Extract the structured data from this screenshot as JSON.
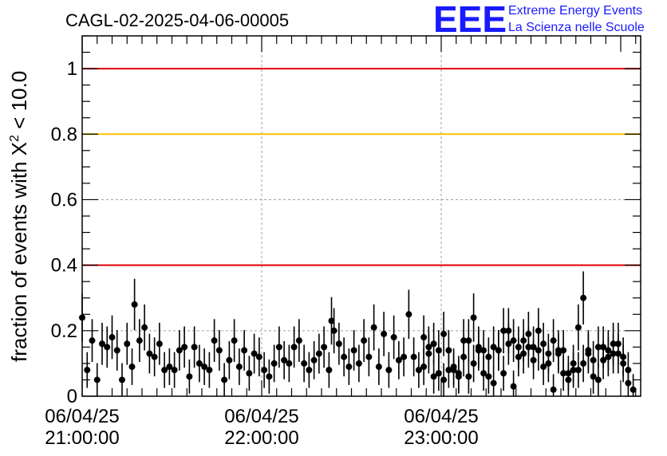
{
  "title": "CAGL-02-2025-04-06-00005",
  "logo": {
    "mark": "EEE",
    "line1": "Extreme Energy Events",
    "line2": "La Scienza nelle Scuole",
    "color": "#1a1aff"
  },
  "chart_data": {
    "type": "scatter",
    "title": "CAGL-02-2025-04-06-00005",
    "ylabel_prefix": "fraction of events with ",
    "ylabel_chi": "X",
    "ylabel_sup": "2",
    "ylabel_suffix": " < 10.0",
    "ylim": [
      0,
      1.1
    ],
    "yticks": [
      "0",
      "0.2",
      "0.4",
      "0.6",
      "0.8",
      "1"
    ],
    "xlim": [
      0,
      224
    ],
    "xticks": [
      {
        "date": "06/04/25",
        "time": "21:00:00",
        "x": 0
      },
      {
        "date": "06/04/25",
        "time": "22:00:00",
        "x": 72
      },
      {
        "date": "06/04/25",
        "time": "23:00:00",
        "x": 144
      }
    ],
    "grid": true,
    "reference_lines": [
      {
        "y": 1.0,
        "color": "#e00000"
      },
      {
        "y": 0.8,
        "color": "#ffc000"
      },
      {
        "y": 0.4,
        "color": "#e00000"
      }
    ],
    "marker_color": "#000000",
    "points": [
      [
        0,
        0.24
      ],
      [
        2,
        0.08
      ],
      [
        4,
        0.17
      ],
      [
        6,
        0.05
      ],
      [
        8,
        0.16
      ],
      [
        10,
        0.15
      ],
      [
        12,
        0.18
      ],
      [
        14,
        0.14
      ],
      [
        16,
        0.05
      ],
      [
        18,
        0.16
      ],
      [
        20,
        0.09
      ],
      [
        21,
        0.28
      ],
      [
        23,
        0.17
      ],
      [
        25,
        0.21
      ],
      [
        27,
        0.13
      ],
      [
        29,
        0.12
      ],
      [
        31,
        0.16
      ],
      [
        33,
        0.08
      ],
      [
        35,
        0.09
      ],
      [
        37,
        0.08
      ],
      [
        39,
        0.14
      ],
      [
        41,
        0.15
      ],
      [
        43,
        0.06
      ],
      [
        45,
        0.15
      ],
      [
        47,
        0.1
      ],
      [
        49,
        0.09
      ],
      [
        51,
        0.08
      ],
      [
        53,
        0.17
      ],
      [
        55,
        0.14
      ],
      [
        57,
        0.05
      ],
      [
        59,
        0.11
      ],
      [
        61,
        0.17
      ],
      [
        63,
        0.09
      ],
      [
        65,
        0.14
      ],
      [
        67,
        0.07
      ],
      [
        69,
        0.13
      ],
      [
        71,
        0.12
      ],
      [
        73,
        0.08
      ],
      [
        75,
        0.06
      ],
      [
        77,
        0.1
      ],
      [
        79,
        0.15
      ],
      [
        81,
        0.11
      ],
      [
        83,
        0.1
      ],
      [
        85,
        0.15
      ],
      [
        87,
        0.17
      ],
      [
        89,
        0.1
      ],
      [
        91,
        0.08
      ],
      [
        93,
        0.11
      ],
      [
        95,
        0.13
      ],
      [
        97,
        0.15
      ],
      [
        99,
        0.08
      ],
      [
        100,
        0.23
      ],
      [
        101,
        0.2
      ],
      [
        103,
        0.16
      ],
      [
        105,
        0.12
      ],
      [
        107,
        0.09
      ],
      [
        109,
        0.14
      ],
      [
        111,
        0.1
      ],
      [
        113,
        0.17
      ],
      [
        115,
        0.12
      ],
      [
        117,
        0.21
      ],
      [
        119,
        0.09
      ],
      [
        121,
        0.19
      ],
      [
        123,
        0.08
      ],
      [
        125,
        0.18
      ],
      [
        127,
        0.11
      ],
      [
        129,
        0.12
      ],
      [
        131,
        0.25
      ],
      [
        133,
        0.12
      ],
      [
        135,
        0.08
      ],
      [
        137,
        0.09
      ],
      [
        139,
        0.15
      ],
      [
        141,
        0.16
      ],
      [
        143,
        0.07
      ],
      [
        145,
        0.05
      ],
      [
        147,
        0.14
      ],
      [
        149,
        0.08
      ],
      [
        151,
        0.06
      ],
      [
        153,
        0.17
      ],
      [
        155,
        0.17
      ],
      [
        157,
        0.24
      ],
      [
        159,
        0.15
      ],
      [
        161,
        0.14
      ],
      [
        163,
        0.12
      ],
      [
        165,
        0.15
      ],
      [
        167,
        0.14
      ],
      [
        169,
        0.07
      ],
      [
        171,
        0.16
      ],
      [
        173,
        0.17
      ],
      [
        175,
        0.12
      ],
      [
        177,
        0.17
      ],
      [
        179,
        0.15
      ],
      [
        181,
        0.11
      ],
      [
        183,
        0.14
      ],
      [
        185,
        0.16
      ],
      [
        187,
        0.1
      ],
      [
        189,
        0.17
      ],
      [
        191,
        0.13
      ],
      [
        193,
        0.07
      ],
      [
        195,
        0.05
      ],
      [
        197,
        0.1
      ],
      [
        199,
        0.08
      ],
      [
        201,
        0.1
      ],
      [
        203,
        0.13
      ],
      [
        205,
        0.11
      ],
      [
        207,
        0.15
      ],
      [
        209,
        0.11
      ],
      [
        211,
        0.12
      ],
      [
        213,
        0.13
      ],
      [
        215,
        0.16
      ],
      [
        217,
        0.12
      ],
      [
        219,
        0.04
      ],
      [
        221,
        0.02
      ]
    ],
    "points_right": [
      [
        137,
        0.18
      ],
      [
        139,
        0.13
      ],
      [
        141,
        0.06
      ],
      [
        143,
        0.14
      ],
      [
        145,
        0.19
      ],
      [
        147,
        0.08
      ],
      [
        149,
        0.09
      ],
      [
        151,
        0.07
      ],
      [
        153,
        0.12
      ],
      [
        155,
        0.06
      ],
      [
        157,
        0.1
      ],
      [
        159,
        0.14
      ],
      [
        161,
        0.07
      ],
      [
        163,
        0.06
      ],
      [
        165,
        0.04
      ],
      [
        167,
        0.14
      ],
      [
        169,
        0.2
      ],
      [
        171,
        0.2
      ],
      [
        173,
        0.03
      ],
      [
        175,
        0.15
      ],
      [
        177,
        0.13
      ],
      [
        179,
        0.19
      ],
      [
        181,
        0.15
      ],
      [
        183,
        0.2
      ],
      [
        185,
        0.09
      ],
      [
        187,
        0.13
      ],
      [
        189,
        0.02
      ],
      [
        191,
        0.14
      ],
      [
        193,
        0.14
      ],
      [
        195,
        0.07
      ],
      [
        197,
        0.08
      ],
      [
        199,
        0.21
      ],
      [
        201,
        0.3
      ],
      [
        203,
        0.14
      ],
      [
        205,
        0.06
      ],
      [
        207,
        0.05
      ],
      [
        209,
        0.15
      ],
      [
        211,
        0.14
      ],
      [
        213,
        0.16
      ],
      [
        215,
        0.13
      ],
      [
        217,
        0.1
      ],
      [
        219,
        0.08
      ]
    ]
  }
}
